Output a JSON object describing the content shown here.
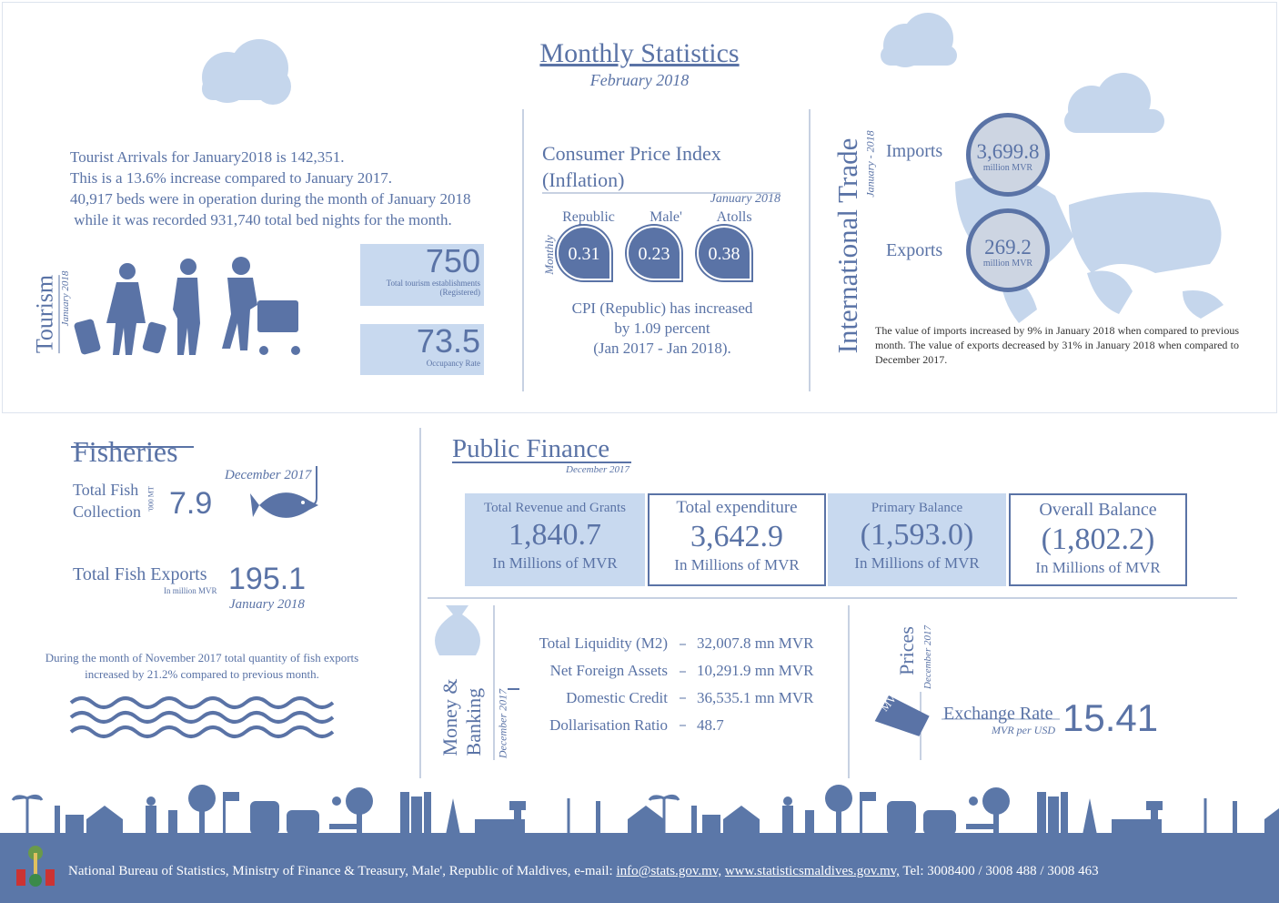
{
  "header": {
    "title": "Monthly Statistics",
    "subtitle": "February  2018"
  },
  "tourism": {
    "title": "Tourism",
    "period": "January 2018",
    "text": [
      "Tourist Arrivals for January2018 is 142,351.",
      "This is a 13.6% increase compared to January 2017.",
      "40,917 beds were in operation during the month of January 2018",
      " while it was recorded 931,740 total bed nights for the month."
    ],
    "stats": [
      {
        "value": "750",
        "label": "Total tourism establishments",
        "note": "(Registered)"
      },
      {
        "value": "73.5",
        "label": "Occupancy Rate"
      }
    ]
  },
  "cpi": {
    "title": "Consumer Price Index",
    "subtitle": "(Inflation)",
    "period": "January 2018",
    "frequency": "Monthly",
    "items": [
      {
        "label": "Republic",
        "value": "0.31"
      },
      {
        "label": "Male'",
        "value": "0.23"
      },
      {
        "label": "Atolls",
        "value": "0.38"
      }
    ],
    "text": [
      "CPI (Republic) has increased",
      "by 1.09 percent",
      "(Jan 2017 - Jan 2018)."
    ]
  },
  "trade": {
    "title": "International Trade",
    "period": "January - 2018",
    "items": [
      {
        "label": "Imports",
        "value": "3,699.8",
        "unit": "million MVR"
      },
      {
        "label": "Exports",
        "value": "269.2",
        "unit": "million MVR"
      }
    ],
    "text": "The value of imports increased by 9% in January 2018 when compared to previous month. The value of exports decreased by 31% in January 2018 when compared to December 2017."
  },
  "fisheries": {
    "title": "Fisheries",
    "collection_label": [
      "Total Fish",
      "Collection"
    ],
    "collection_unit": "'000 MT",
    "collection_period": "December 2017",
    "collection_value": "7.9",
    "exports_label": "Total Fish Exports",
    "exports_unit": "In million MVR",
    "exports_value": "195.1",
    "exports_period": "January 2018",
    "text": [
      "During the month of November 2017 total quantity of fish exports",
      "increased by 21.2% compared to previous month."
    ]
  },
  "public_finance": {
    "title": "Public Finance",
    "period": "December 2017",
    "items": [
      {
        "label": "Total Revenue and Grants",
        "value": "1,840.7",
        "unit": "In Millions of MVR"
      },
      {
        "label": "Total  expenditure",
        "value": "3,642.9",
        "unit": "In Millions of MVR"
      },
      {
        "label": "Primary Balance",
        "value": "(1,593.0)",
        "unit": "In Millions of MVR"
      },
      {
        "label": "Overall Balance",
        "value": "(1,802.2)",
        "unit": "In Millions of MVR"
      }
    ]
  },
  "money_banking": {
    "title": [
      "Money &",
      "Banking"
    ],
    "period": "December 2017",
    "items": [
      {
        "label": "Total Liquidity (M2)",
        "value": "32,007.8 mn MVR"
      },
      {
        "label": "Net Foreign Assets",
        "value": "10,291.9 mn MVR"
      },
      {
        "label": "Domestic Credit",
        "value": "36,535.1 mn MVR"
      },
      {
        "label": "Dollarisation Ratio",
        "value": "48.7"
      }
    ]
  },
  "prices": {
    "title": "Prices",
    "period": "December 2017",
    "tag": "MVR",
    "label": "Exchange Rate",
    "unit": "MVR per USD",
    "value": "15.41"
  },
  "footer": {
    "text": "National Bureau of Statistics, Ministry of Finance & Treasury, Male', Republic of Maldives, e-mail:",
    "email": "info@stats.gov.mv,",
    "website": "www.statisticsmaldives.gov.mv,",
    "phone": "Tel: 3008400 / 3008 488 / 3008 463"
  }
}
